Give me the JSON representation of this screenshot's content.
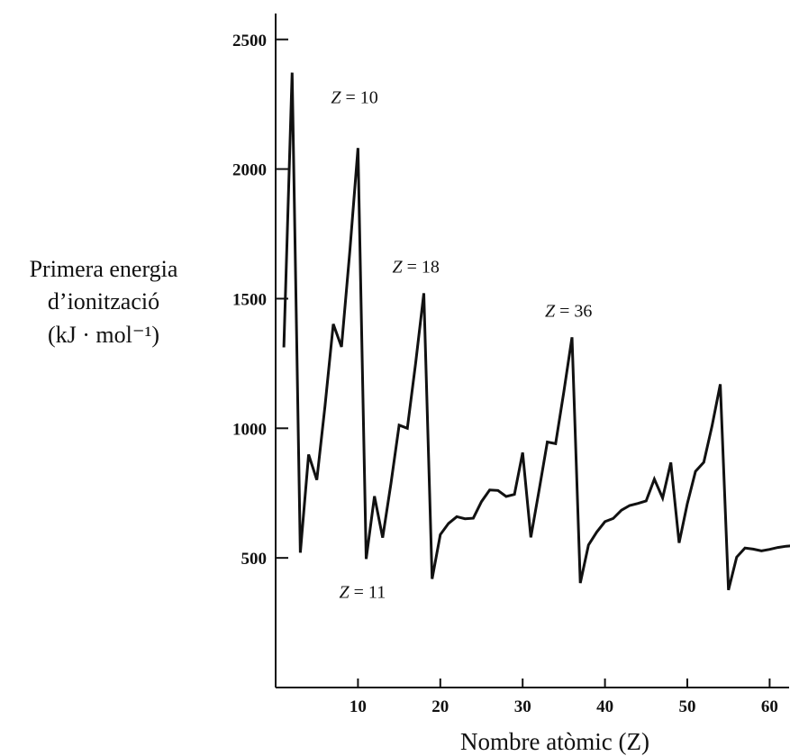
{
  "chart_data": {
    "type": "line",
    "ylabel_lines": [
      "Primera energia",
      "d’ionització",
      "(kJ · mol⁻¹)"
    ],
    "xlabel": "Nombre atòmic (Z)",
    "xlim": [
      0,
      63
    ],
    "ylim": [
      0,
      2600
    ],
    "x_ticks": [
      10,
      20,
      30,
      40,
      50,
      60
    ],
    "y_ticks": [
      500,
      1000,
      1500,
      2000,
      2500
    ],
    "series": [
      {
        "x": [
          1,
          2,
          3,
          4,
          5,
          6,
          7,
          8,
          9,
          10,
          11,
          12,
          13,
          14,
          15,
          16,
          17,
          18,
          19,
          20,
          21,
          22,
          23,
          24,
          25,
          26,
          27,
          28,
          29,
          30,
          31,
          32,
          33,
          34,
          35,
          36,
          37,
          38,
          39,
          40,
          41,
          42,
          43,
          44,
          45,
          46,
          47,
          48,
          49,
          50,
          51,
          52,
          53,
          54,
          55,
          56,
          57,
          58,
          59,
          60,
          61,
          62,
          63
        ],
        "y": [
          1312,
          2372,
          520,
          899,
          801,
          1086,
          1402,
          1314,
          1681,
          2081,
          496,
          738,
          578,
          787,
          1012,
          1000,
          1251,
          1521,
          419,
          590,
          633,
          659,
          651,
          653,
          717,
          762,
          760,
          737,
          745,
          906,
          579,
          762,
          947,
          941,
          1140,
          1351,
          403,
          550,
          600,
          640,
          652,
          684,
          702,
          710,
          720,
          804,
          731,
          868,
          558,
          709,
          834,
          869,
          1008,
          1170,
          376,
          503,
          538,
          534,
          527,
          533,
          540,
          545,
          547
        ]
      }
    ],
    "annotations": [
      {
        "z": "Z",
        "text": " = 10",
        "x": 10,
        "y": 2081
      },
      {
        "z": "Z",
        "text": " = 18",
        "x": 18,
        "y": 1521
      },
      {
        "z": "Z",
        "text": " = 36",
        "x": 36,
        "y": 1351
      },
      {
        "z": "Z",
        "text": " = 11",
        "x": 11,
        "y": 496
      }
    ]
  }
}
